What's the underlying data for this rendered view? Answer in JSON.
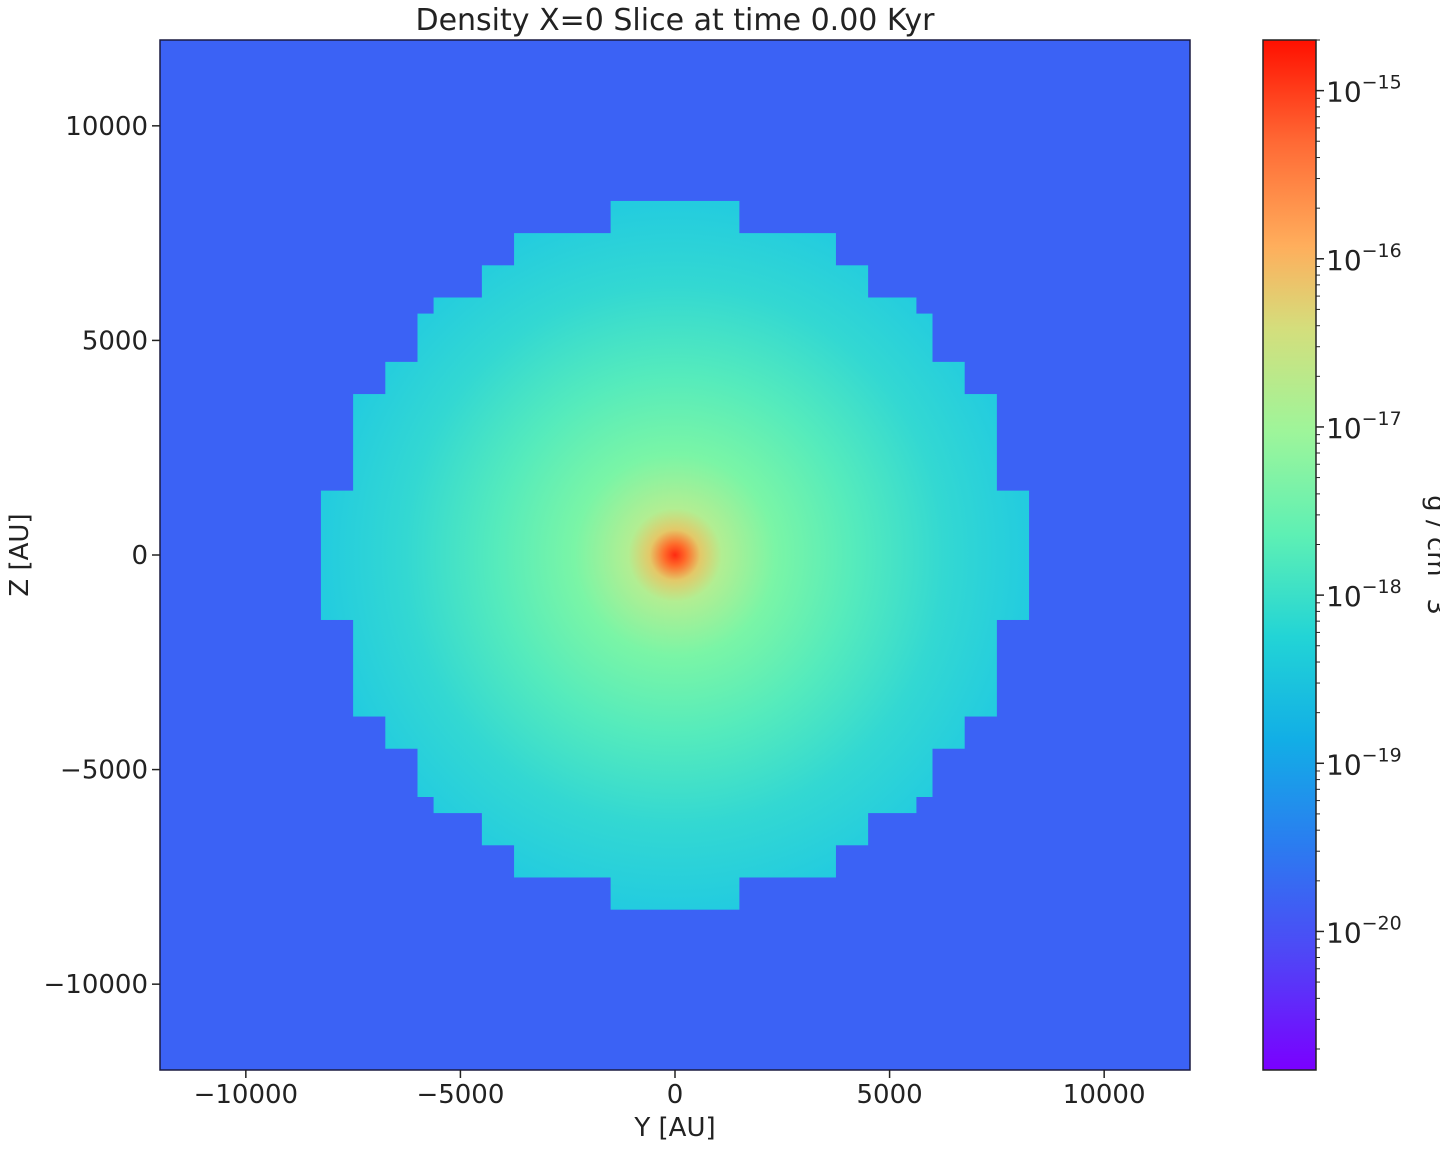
{
  "chart_data": {
    "type": "heatmap",
    "title": "Density X=0 Slice at time 0.00 Kyr",
    "xlabel": "Y [AU]",
    "ylabel": "Z [AU]",
    "xlim": [
      -12000,
      12000
    ],
    "ylim": [
      -12000,
      12000
    ],
    "x_ticks": [
      -10000,
      -5000,
      0,
      5000,
      10000
    ],
    "y_ticks": [
      10000,
      5000,
      0,
      -5000,
      -10000
    ],
    "x_tick_labels": [
      "−10000",
      "−5000",
      "0",
      "5000",
      "10000"
    ],
    "y_tick_labels": [
      "10000",
      "5000",
      "0",
      "−5000",
      "−10000"
    ],
    "grid": false,
    "colormap": "rainbow",
    "colorbar": {
      "label": "g / cm^3",
      "scale": "log",
      "range": [
        1.5e-21,
        2e-15
      ],
      "ticks": [
        1e-15,
        1e-16,
        1e-17,
        1e-18,
        1e-19,
        1e-20
      ],
      "tick_base": "10",
      "tick_exponents": [
        "−15",
        "−16",
        "−17",
        "−18",
        "−19",
        "−20"
      ]
    },
    "background_density": 4e-20,
    "cloud_edge_density": 1.5e-19,
    "center_peak_density": 1.5e-15,
    "center": [
      0,
      0
    ],
    "cloud_boundary_rows": [
      {
        "z": [
          7500,
          8250
        ],
        "y_half_width": 1500
      },
      {
        "z": [
          6750,
          7500
        ],
        "y_half_width": 3750
      },
      {
        "z": [
          6000,
          6750
        ],
        "y_half_width": 4500
      },
      {
        "z": [
          5625,
          6000
        ],
        "y_half_width": 5625
      },
      {
        "z": [
          4500,
          5625
        ],
        "y_half_width": 6000
      },
      {
        "z": [
          3750,
          4500
        ],
        "y_half_width": 6750
      },
      {
        "z": [
          1500,
          3750
        ],
        "y_half_width": 7500
      },
      {
        "z": [
          -1500,
          1500
        ],
        "y_half_width": 8250
      },
      {
        "z": [
          -3750,
          -1500
        ],
        "y_half_width": 7500
      },
      {
        "z": [
          -4500,
          -3750
        ],
        "y_half_width": 6750
      },
      {
        "z": [
          -5625,
          -4500
        ],
        "y_half_width": 6000
      },
      {
        "z": [
          -6000,
          -5625
        ],
        "y_half_width": 5625
      },
      {
        "z": [
          -6750,
          -6000
        ],
        "y_half_width": 4500
      },
      {
        "z": [
          -7500,
          -6750
        ],
        "y_half_width": 3750
      },
      {
        "z": [
          -8250,
          -7500
        ],
        "y_half_width": 1500
      }
    ],
    "colors": {
      "background": "#3b62f5",
      "cloud_edge": "#22c7e0",
      "mid": "#5ef0b4",
      "peak": "#ff3a1c"
    }
  }
}
